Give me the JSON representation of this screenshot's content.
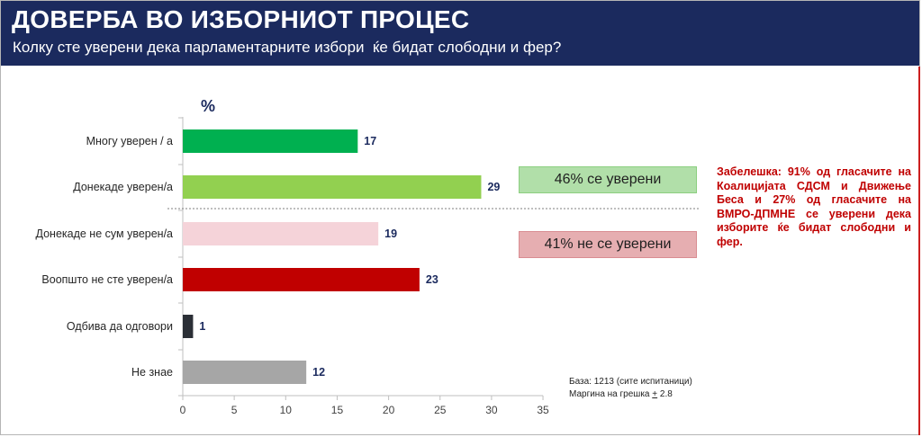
{
  "title": "ДОВЕРБА ВО ИЗБОРНИОТ ПРОЦЕС",
  "subtitle": "Колку сте уверени дека парламентарните избори  ќе бидат слободни и фер?",
  "summary": {
    "positive": "46% се уверени",
    "negative": "41% не се уверени"
  },
  "note": "Забелешка: 91% од гласачите на Коалицијата СДСМ и Движење Беса и 27% од гласачите на ВМРО-ДПМНЕ се уверени дека изборите ќе бидат слободни и фер.",
  "base": {
    "line1": "База: 1213 (сите испитаници)",
    "margin_prefix": "Маргина на грешка ",
    "margin_symbol": "+",
    "margin_value": " 2.8"
  },
  "colors": {
    "header_bg": "#1b2a5e",
    "bars": [
      "#00b050",
      "#92d050",
      "#f5d3d9",
      "#c00000",
      "#2b2f36",
      "#a6a6a6"
    ],
    "value_label": "#1b2a5e",
    "note": "#c00000"
  },
  "chart_data": {
    "type": "bar",
    "orientation": "horizontal",
    "unit_label": "%",
    "categories": [
      "Многу уверен / а",
      "Донекаде уверен/а",
      "Донекаде не сум уверен/а",
      "Воопшто не сте уверен/а",
      "Одбива да одговори",
      "Не знае"
    ],
    "values": [
      17,
      29,
      19,
      23,
      1,
      12
    ],
    "xlim": [
      0,
      35
    ],
    "xticks": [
      0,
      5,
      10,
      15,
      20,
      25,
      30,
      35
    ],
    "grid": false,
    "legend": "none"
  }
}
